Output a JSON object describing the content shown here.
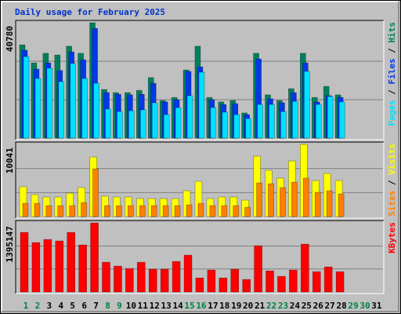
{
  "chart_data": {
    "type": "bar",
    "title": "Daily usage for February 2025",
    "categories": [
      "1",
      "2",
      "3",
      "4",
      "5",
      "6",
      "7",
      "8",
      "9",
      "10",
      "11",
      "12",
      "13",
      "14",
      "15",
      "16",
      "17",
      "18",
      "19",
      "20",
      "21",
      "22",
      "23",
      "24",
      "25",
      "26",
      "27",
      "28",
      "29",
      "30",
      "31"
    ],
    "category_colors": [
      "#008040",
      "#008040",
      "#000000",
      "#000000",
      "#000000",
      "#000000",
      "#000000",
      "#008040",
      "#008040",
      "#000000",
      "#000000",
      "#000000",
      "#000000",
      "#000000",
      "#008040",
      "#008040",
      "#000000",
      "#000000",
      "#000000",
      "#000000",
      "#000000",
      "#008040",
      "#008040",
      "#000000",
      "#000000",
      "#000000",
      "#000000",
      "#000000",
      "#008040",
      "#008040",
      "#000000"
    ],
    "legend_separator": " / ",
    "panels": [
      {
        "ylim": [
          0,
          40780
        ],
        "yticks": [
          40780
        ],
        "series": [
          {
            "name": "Hits",
            "color": "#00805c",
            "values": [
              33000,
              26600,
              30000,
              29400,
              32500,
              30000,
              40780,
              17200,
              16100,
              16100,
              16900,
              21400,
              13300,
              14400,
              24100,
              32500,
              14400,
              12800,
              13300,
              8900,
              30000,
              15300,
              13300,
              17500,
              30000,
              14400,
              18300,
              15300,
              null,
              null,
              null
            ]
          },
          {
            "name": "Files",
            "color": "#0038e8",
            "values": [
              31100,
              24400,
              26600,
              23900,
              30500,
              27700,
              38800,
              16100,
              15500,
              15300,
              15500,
              19400,
              12800,
              13600,
              23600,
              25200,
              13600,
              11900,
              12200,
              8300,
              28000,
              13900,
              12500,
              16100,
              26600,
              12800,
              15000,
              14400,
              null,
              null,
              null
            ]
          },
          {
            "name": "Pages",
            "color": "#00e0ff",
            "values": [
              28800,
              21100,
              24700,
              20000,
              26400,
              21100,
              19400,
              10300,
              9400,
              9700,
              10000,
              12500,
              8300,
              10800,
              15000,
              23300,
              10800,
              9200,
              8300,
              6900,
              11900,
              11900,
              9400,
              13000,
              23600,
              11900,
              14700,
              12800,
              null,
              null,
              null
            ]
          }
        ]
      },
      {
        "ylim": [
          0,
          10041
        ],
        "yticks": [
          10041
        ],
        "series": [
          {
            "name": "Visits",
            "color": "#ffff00",
            "values": [
              4150,
              3060,
              2730,
              2730,
              3270,
              4040,
              8290,
              2840,
              2730,
              2730,
              2510,
              2510,
              2510,
              2510,
              3600,
              4910,
              2510,
              2730,
              2730,
              2290,
              8400,
              6440,
              5350,
              7750,
              10041,
              5020,
              6000,
              5020,
              null,
              null,
              null
            ]
          },
          {
            "name": "Sites",
            "color": "#ff8000",
            "values": [
              1850,
              1850,
              1530,
              1530,
              1530,
              1960,
              6650,
              1530,
              1530,
              1530,
              1530,
              1530,
              1530,
              1530,
              1640,
              1850,
              1530,
              1530,
              1530,
              1310,
              4690,
              4580,
              4040,
              4800,
              5350,
              3380,
              3600,
              3160,
              null,
              null,
              null
            ]
          }
        ]
      },
      {
        "ylim": [
          0,
          1395147
        ],
        "yticks": [
          1395147
        ],
        "series": [
          {
            "name": "KBytes",
            "color": "#ff0000",
            "values": [
              1205000,
              999000,
              1062000,
              1031000,
              1205000,
              951000,
              1395147,
              602000,
              523000,
              476000,
              602000,
              460000,
              460000,
              618000,
              745000,
              285000,
              444000,
              285000,
              460000,
              254000,
              935000,
              428000,
              317000,
              444000,
              967000,
              412000,
              507000,
              412000,
              null,
              null,
              null
            ]
          }
        ]
      }
    ]
  }
}
